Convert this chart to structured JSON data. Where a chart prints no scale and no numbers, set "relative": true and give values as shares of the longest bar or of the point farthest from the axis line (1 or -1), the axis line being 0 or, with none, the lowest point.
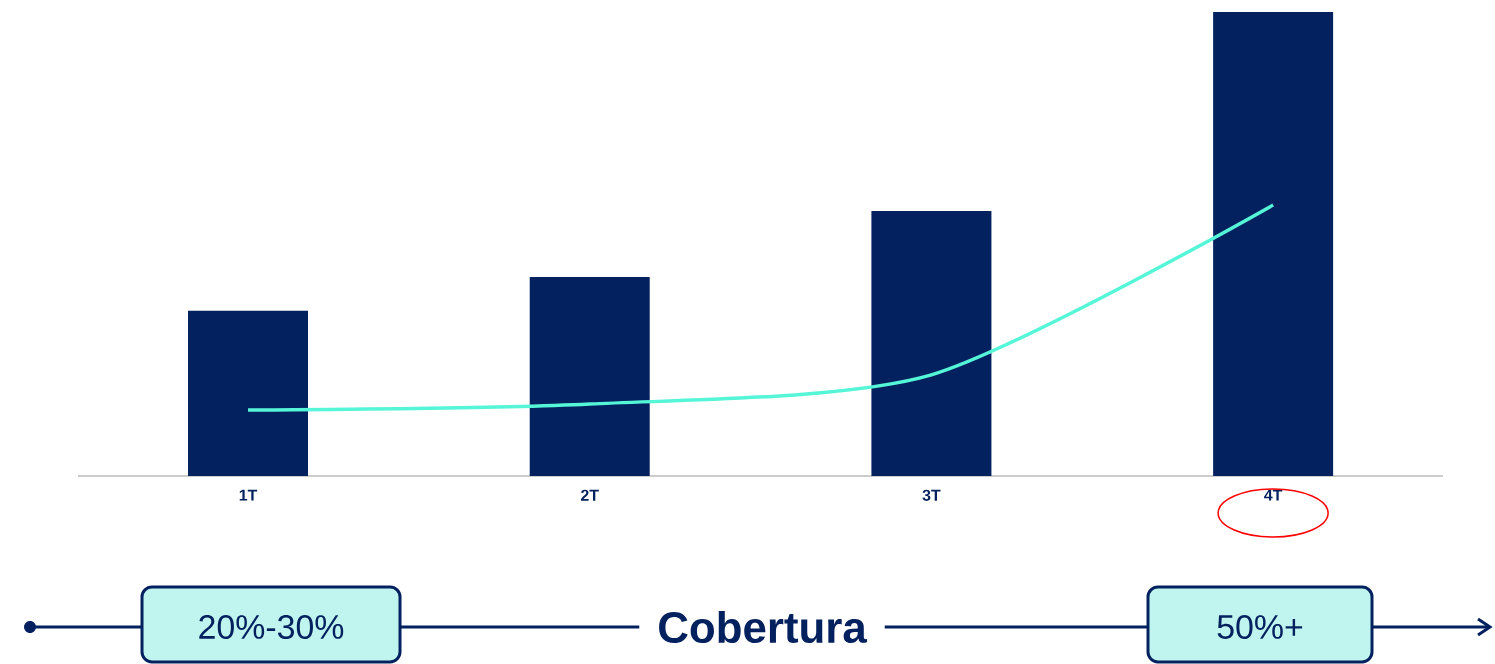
{
  "chart_data": {
    "type": "bar",
    "relative": true,
    "categories": [
      "1T",
      "2T",
      "3T",
      "4T"
    ],
    "series": [
      {
        "color": "#03215e",
        "values": [
          0.356,
          0.429,
          0.571,
          1
        ]
      },
      {
        "type": "line",
        "color": "#55f5d8",
        "values": [
          0.142,
          0.155,
          0.218,
          0.584
        ]
      }
    ],
    "marker": "none",
    "line_style": "solid",
    "annotations": [
      "20%-30%",
      "Cobertura",
      "50%+"
    ]
  }
}
